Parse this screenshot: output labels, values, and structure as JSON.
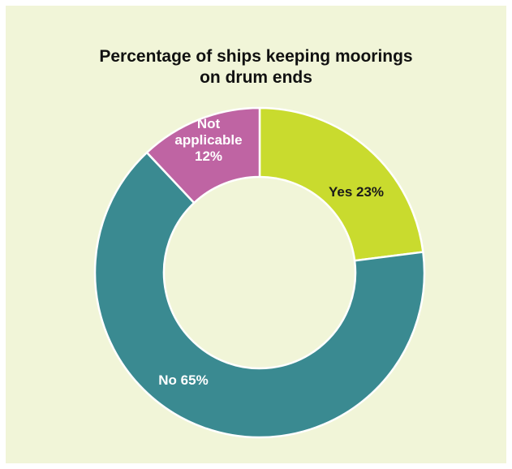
{
  "chart_data": {
    "type": "pie",
    "title": "Percentage of ships keeping moorings on drum ends",
    "title_lines": [
      "Percentage of ships keeping moorings",
      "on drum ends"
    ],
    "donut": true,
    "slices": [
      {
        "label": "Yes",
        "value": 23,
        "color": "#c9db2e",
        "text_color": "#1a1a1a",
        "text_lines": [
          "Yes 23%"
        ]
      },
      {
        "label": "No",
        "value": 65,
        "color": "#3a8a91",
        "text_color": "#ffffff",
        "text_lines": [
          "No 65%"
        ]
      },
      {
        "label": "Not applicable",
        "value": 12,
        "color": "#bf64a3",
        "text_color": "#ffffff",
        "text_lines": [
          "Not",
          "applicable",
          "12%"
        ]
      }
    ],
    "background": "#f1f5d8"
  }
}
